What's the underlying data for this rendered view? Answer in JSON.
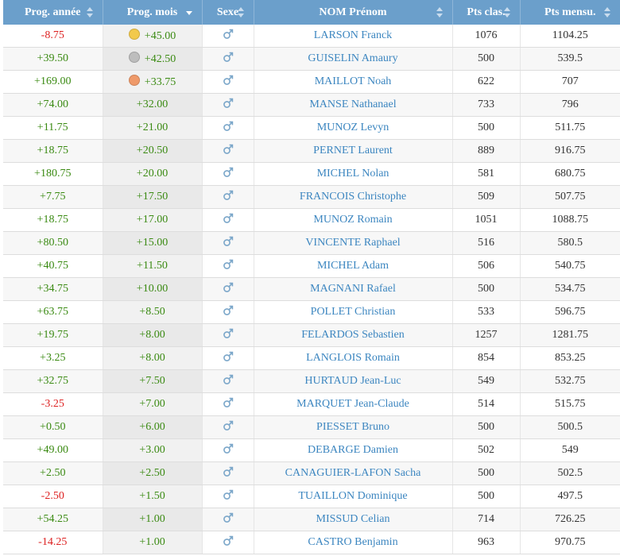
{
  "table": {
    "headers": {
      "prog_year": "Prog. année",
      "prog_month": "Prog. mois",
      "sex": "Sexe",
      "name": "NOM Prénom",
      "pts_clas": "Pts clas.",
      "pts_mensu": "Pts mensu."
    },
    "sorted_by": "prog_month",
    "sort_direction": "desc",
    "medal_colors": {
      "gold": "#f2c94c",
      "silver": "#bdbdbd",
      "bronze": "#ef9a6a"
    },
    "gender_icon": "male-symbol-icon",
    "rows": [
      {
        "prog_year": "-8.75",
        "prog_month": "+45.00",
        "medal": "gold",
        "name": "LARSON Franck",
        "pts_clas": "1076",
        "pts_mensu": "1104.25"
      },
      {
        "prog_year": "+39.50",
        "prog_month": "+42.50",
        "medal": "silver",
        "name": "GUISELIN Amaury",
        "pts_clas": "500",
        "pts_mensu": "539.5"
      },
      {
        "prog_year": "+169.00",
        "prog_month": "+33.75",
        "medal": "bronze",
        "name": "MAILLOT Noah",
        "pts_clas": "622",
        "pts_mensu": "707"
      },
      {
        "prog_year": "+74.00",
        "prog_month": "+32.00",
        "medal": "",
        "name": "MANSE Nathanael",
        "pts_clas": "733",
        "pts_mensu": "796"
      },
      {
        "prog_year": "+11.75",
        "prog_month": "+21.00",
        "medal": "",
        "name": "MUNOZ Levyn",
        "pts_clas": "500",
        "pts_mensu": "511.75"
      },
      {
        "prog_year": "+18.75",
        "prog_month": "+20.50",
        "medal": "",
        "name": "PERNET Laurent",
        "pts_clas": "889",
        "pts_mensu": "916.75"
      },
      {
        "prog_year": "+180.75",
        "prog_month": "+20.00",
        "medal": "",
        "name": "MICHEL Nolan",
        "pts_clas": "581",
        "pts_mensu": "680.75"
      },
      {
        "prog_year": "+7.75",
        "prog_month": "+17.50",
        "medal": "",
        "name": "FRANCOIS Christophe",
        "pts_clas": "509",
        "pts_mensu": "507.75"
      },
      {
        "prog_year": "+18.75",
        "prog_month": "+17.00",
        "medal": "",
        "name": "MUNOZ Romain",
        "pts_clas": "1051",
        "pts_mensu": "1088.75"
      },
      {
        "prog_year": "+80.50",
        "prog_month": "+15.00",
        "medal": "",
        "name": "VINCENTE Raphael",
        "pts_clas": "516",
        "pts_mensu": "580.5"
      },
      {
        "prog_year": "+40.75",
        "prog_month": "+11.50",
        "medal": "",
        "name": "MICHEL Adam",
        "pts_clas": "506",
        "pts_mensu": "540.75"
      },
      {
        "prog_year": "+34.75",
        "prog_month": "+10.00",
        "medal": "",
        "name": "MAGNANI Rafael",
        "pts_clas": "500",
        "pts_mensu": "534.75"
      },
      {
        "prog_year": "+63.75",
        "prog_month": "+8.50",
        "medal": "",
        "name": "POLLET Christian",
        "pts_clas": "533",
        "pts_mensu": "596.75"
      },
      {
        "prog_year": "+19.75",
        "prog_month": "+8.00",
        "medal": "",
        "name": "FELARDOS Sebastien",
        "pts_clas": "1257",
        "pts_mensu": "1281.75"
      },
      {
        "prog_year": "+3.25",
        "prog_month": "+8.00",
        "medal": "",
        "name": "LANGLOIS Romain",
        "pts_clas": "854",
        "pts_mensu": "853.25"
      },
      {
        "prog_year": "+32.75",
        "prog_month": "+7.50",
        "medal": "",
        "name": "HURTAUD Jean-Luc",
        "pts_clas": "549",
        "pts_mensu": "532.75"
      },
      {
        "prog_year": "-3.25",
        "prog_month": "+7.00",
        "medal": "",
        "name": "MARQUET Jean-Claude",
        "pts_clas": "514",
        "pts_mensu": "515.75"
      },
      {
        "prog_year": "+0.50",
        "prog_month": "+6.00",
        "medal": "",
        "name": "PIESSET Bruno",
        "pts_clas": "500",
        "pts_mensu": "500.5"
      },
      {
        "prog_year": "+49.00",
        "prog_month": "+3.00",
        "medal": "",
        "name": "DEBARGE Damien",
        "pts_clas": "502",
        "pts_mensu": "549"
      },
      {
        "prog_year": "+2.50",
        "prog_month": "+2.50",
        "medal": "",
        "name": "CANAGUIER-LAFON Sacha",
        "pts_clas": "500",
        "pts_mensu": "502.5"
      },
      {
        "prog_year": "-2.50",
        "prog_month": "+1.50",
        "medal": "",
        "name": "TUAILLON Dominique",
        "pts_clas": "500",
        "pts_mensu": "497.5"
      },
      {
        "prog_year": "+54.25",
        "prog_month": "+1.00",
        "medal": "",
        "name": "MISSUD Celian",
        "pts_clas": "714",
        "pts_mensu": "726.25"
      },
      {
        "prog_year": "-14.25",
        "prog_month": "+1.00",
        "medal": "",
        "name": "CASTRO Benjamin",
        "pts_clas": "963",
        "pts_mensu": "970.75"
      }
    ]
  }
}
